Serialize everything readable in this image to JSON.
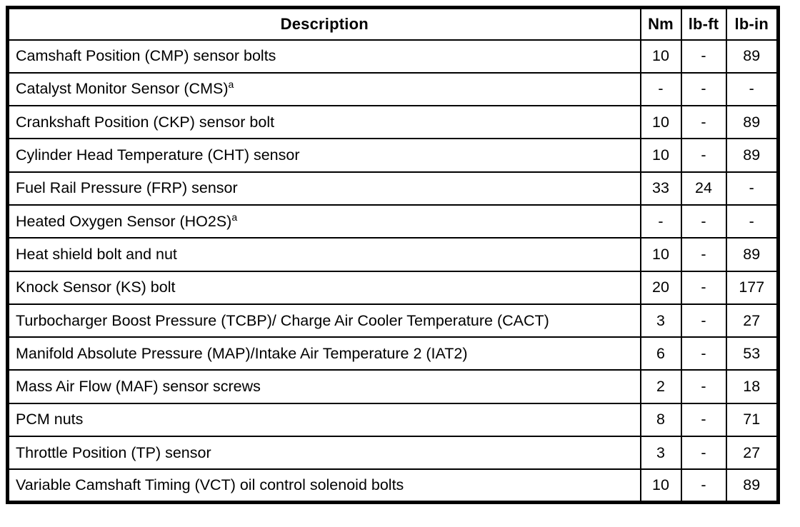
{
  "table": {
    "headers": {
      "description": "Description",
      "nm": "Nm",
      "lbft": "lb-ft",
      "lbin": "lb-in"
    },
    "rows": [
      {
        "description": "Camshaft Position (CMP) sensor bolts",
        "footnote": "",
        "nm": "10",
        "lbft": "-",
        "lbin": "89"
      },
      {
        "description": "Catalyst Monitor Sensor (CMS)",
        "footnote": "a",
        "nm": "-",
        "lbft": "-",
        "lbin": "-"
      },
      {
        "description": "Crankshaft Position (CKP) sensor bolt",
        "footnote": "",
        "nm": "10",
        "lbft": "-",
        "lbin": "89"
      },
      {
        "description": "Cylinder Head Temperature (CHT) sensor",
        "footnote": "",
        "nm": "10",
        "lbft": "-",
        "lbin": "89"
      },
      {
        "description": "Fuel Rail Pressure (FRP) sensor",
        "footnote": "",
        "nm": "33",
        "lbft": "24",
        "lbin": "-"
      },
      {
        "description": "Heated Oxygen Sensor (HO2S)",
        "footnote": "a",
        "nm": "-",
        "lbft": "-",
        "lbin": "-"
      },
      {
        "description": "Heat shield bolt and nut",
        "footnote": "",
        "nm": "10",
        "lbft": "-",
        "lbin": "89"
      },
      {
        "description": "Knock Sensor (KS) bolt",
        "footnote": "",
        "nm": "20",
        "lbft": "-",
        "lbin": "177"
      },
      {
        "description": "Turbocharger Boost Pressure (TCBP)/ Charge Air Cooler Temperature (CACT)",
        "footnote": "",
        "nm": "3",
        "lbft": "-",
        "lbin": "27"
      },
      {
        "description": "Manifold Absolute Pressure (MAP)/Intake Air Temperature 2 (IAT2)",
        "footnote": "",
        "nm": "6",
        "lbft": "-",
        "lbin": "53"
      },
      {
        "description": "Mass Air Flow (MAF) sensor screws",
        "footnote": "",
        "nm": "2",
        "lbft": "-",
        "lbin": "18"
      },
      {
        "description": "PCM nuts",
        "footnote": "",
        "nm": "8",
        "lbft": "-",
        "lbin": "71"
      },
      {
        "description": "Throttle Position (TP) sensor",
        "footnote": "",
        "nm": "3",
        "lbft": "-",
        "lbin": "27"
      },
      {
        "description": "Variable Camshaft Timing (VCT) oil control solenoid bolts",
        "footnote": "",
        "nm": "10",
        "lbft": "-",
        "lbin": "89"
      }
    ]
  }
}
